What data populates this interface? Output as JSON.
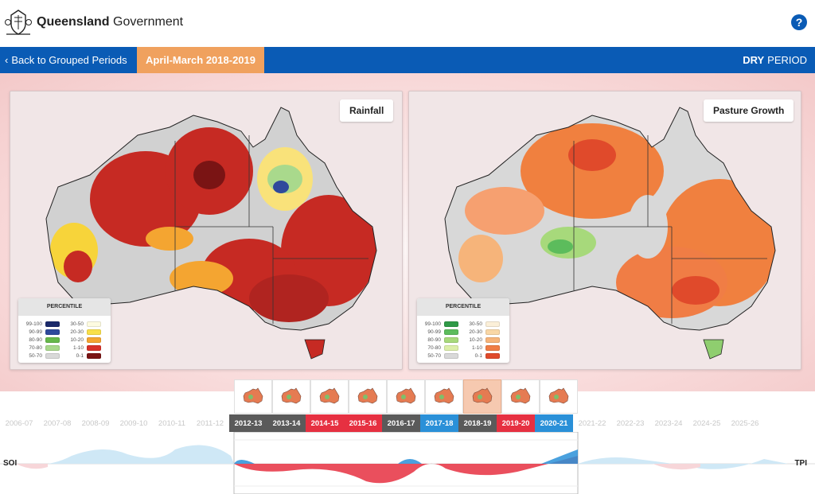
{
  "header": {
    "brand_bold": "Queensland",
    "brand_rest": "Government",
    "help_label": "?"
  },
  "nav": {
    "back_label": "Back to Grouped Periods",
    "period_label": "April-March 2018-2019",
    "dry_bold": "DRY",
    "dry_rest": "PERIOD"
  },
  "panels": {
    "left_title": "Rainfall",
    "right_title": "Pasture Growth"
  },
  "legend": {
    "heading": "PERCENTILE",
    "rainfall_left": [
      {
        "label": "99-100",
        "color": "#1b2a6b"
      },
      {
        "label": "90-99",
        "color": "#2f4a9c"
      },
      {
        "label": "80-90",
        "color": "#66b84a"
      },
      {
        "label": "70-80",
        "color": "#a9d98c"
      },
      {
        "label": "50-70",
        "color": "#d9d9d9"
      }
    ],
    "rainfall_right": [
      {
        "label": "30-50",
        "color": "#fdfbe0"
      },
      {
        "label": "20-30",
        "color": "#f9e04a"
      },
      {
        "label": "10-20",
        "color": "#f4a531"
      },
      {
        "label": "1-10",
        "color": "#d8322a"
      },
      {
        "label": "0-1",
        "color": "#7a1414"
      }
    ],
    "pasture_left": [
      {
        "label": "99-100",
        "color": "#2f9a47"
      },
      {
        "label": "90-99",
        "color": "#5cbc5c"
      },
      {
        "label": "80-90",
        "color": "#a7d97b"
      },
      {
        "label": "70-80",
        "color": "#dcefa9"
      },
      {
        "label": "50-70",
        "color": "#d9d9d9"
      }
    ],
    "pasture_right": [
      {
        "label": "30-50",
        "color": "#fbefd8"
      },
      {
        "label": "20-30",
        "color": "#f9d7a6"
      },
      {
        "label": "10-20",
        "color": "#f6b47a"
      },
      {
        "label": "1-10",
        "color": "#f07d45"
      },
      {
        "label": "0-1",
        "color": "#e04a2b"
      }
    ]
  },
  "timeline": {
    "years": [
      {
        "label": "2006-07",
        "state": "off",
        "color": ""
      },
      {
        "label": "2007-08",
        "state": "off",
        "color": ""
      },
      {
        "label": "2008-09",
        "state": "off",
        "color": ""
      },
      {
        "label": "2009-10",
        "state": "off",
        "color": ""
      },
      {
        "label": "2010-11",
        "state": "off",
        "color": ""
      },
      {
        "label": "2011-12",
        "state": "off",
        "color": ""
      },
      {
        "label": "2012-13",
        "state": "on",
        "color": "#5a5a5a"
      },
      {
        "label": "2013-14",
        "state": "on",
        "color": "#5a5a5a"
      },
      {
        "label": "2014-15",
        "state": "on",
        "color": "#e63041"
      },
      {
        "label": "2015-16",
        "state": "on",
        "color": "#e63041"
      },
      {
        "label": "2016-17",
        "state": "on",
        "color": "#5a5a5a"
      },
      {
        "label": "2017-18",
        "state": "on",
        "color": "#2a90d8"
      },
      {
        "label": "2018-19",
        "state": "on",
        "color": "#5a5a5a"
      },
      {
        "label": "2019-20",
        "state": "on",
        "color": "#e63041"
      },
      {
        "label": "2020-21",
        "state": "on",
        "color": "#2a90d8"
      },
      {
        "label": "2021-22",
        "state": "off",
        "color": ""
      },
      {
        "label": "2022-23",
        "state": "off",
        "color": ""
      },
      {
        "label": "2023-24",
        "state": "off",
        "color": ""
      },
      {
        "label": "2024-25",
        "state": "off",
        "color": ""
      },
      {
        "label": "2025-26",
        "state": "off",
        "color": ""
      }
    ],
    "soi_label": "SOI",
    "tpi_label": "TPI"
  },
  "colors": {
    "nav_blue": "#0a5bb5",
    "period_orange": "#f0a15e"
  }
}
